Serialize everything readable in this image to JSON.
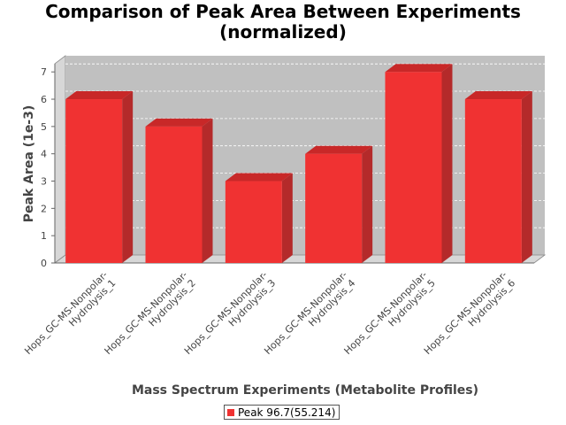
{
  "chart_data": {
    "type": "bar",
    "title_line1": "Comparison of Peak Area Between Experiments",
    "title_line2": "(normalized)",
    "xlabel": "Mass Spectrum Experiments (Metabolite Profiles)",
    "ylabel": "Peak Area (1e-3)",
    "categories": [
      [
        "Hops_GC-MS-Nonpolar-",
        "Hydrolysis_1"
      ],
      [
        "Hops_GC-MS-Nonpolar-",
        "Hydrolysis_2"
      ],
      [
        "Hops_GC-MS-Nonpolar-",
        "Hydrolysis_3"
      ],
      [
        "Hops_GC-MS-Nonpolar-",
        "Hydrolysis_4"
      ],
      [
        "Hops_GC-MS-Nonpolar-",
        "Hydrolysis_5"
      ],
      [
        "Hops_GC-MS-Nonpolar-",
        "Hydrolysis_6"
      ]
    ],
    "series": [
      {
        "name": "Peak 96.7(55.214)",
        "values": [
          6,
          5,
          3,
          4,
          7,
          6
        ]
      }
    ],
    "ylim": [
      0,
      7.3
    ],
    "yticks": [
      0,
      1,
      2,
      3,
      4,
      5,
      6,
      7
    ],
    "grid": true,
    "legend_position": "bottom",
    "colors": {
      "bar_front": "#f03232",
      "bar_top": "#c82828",
      "bar_side": "#b42a2a",
      "plot_bg": "#c0c0c0",
      "wall": "#d7d7d7",
      "gridline": "#ffffff"
    }
  }
}
